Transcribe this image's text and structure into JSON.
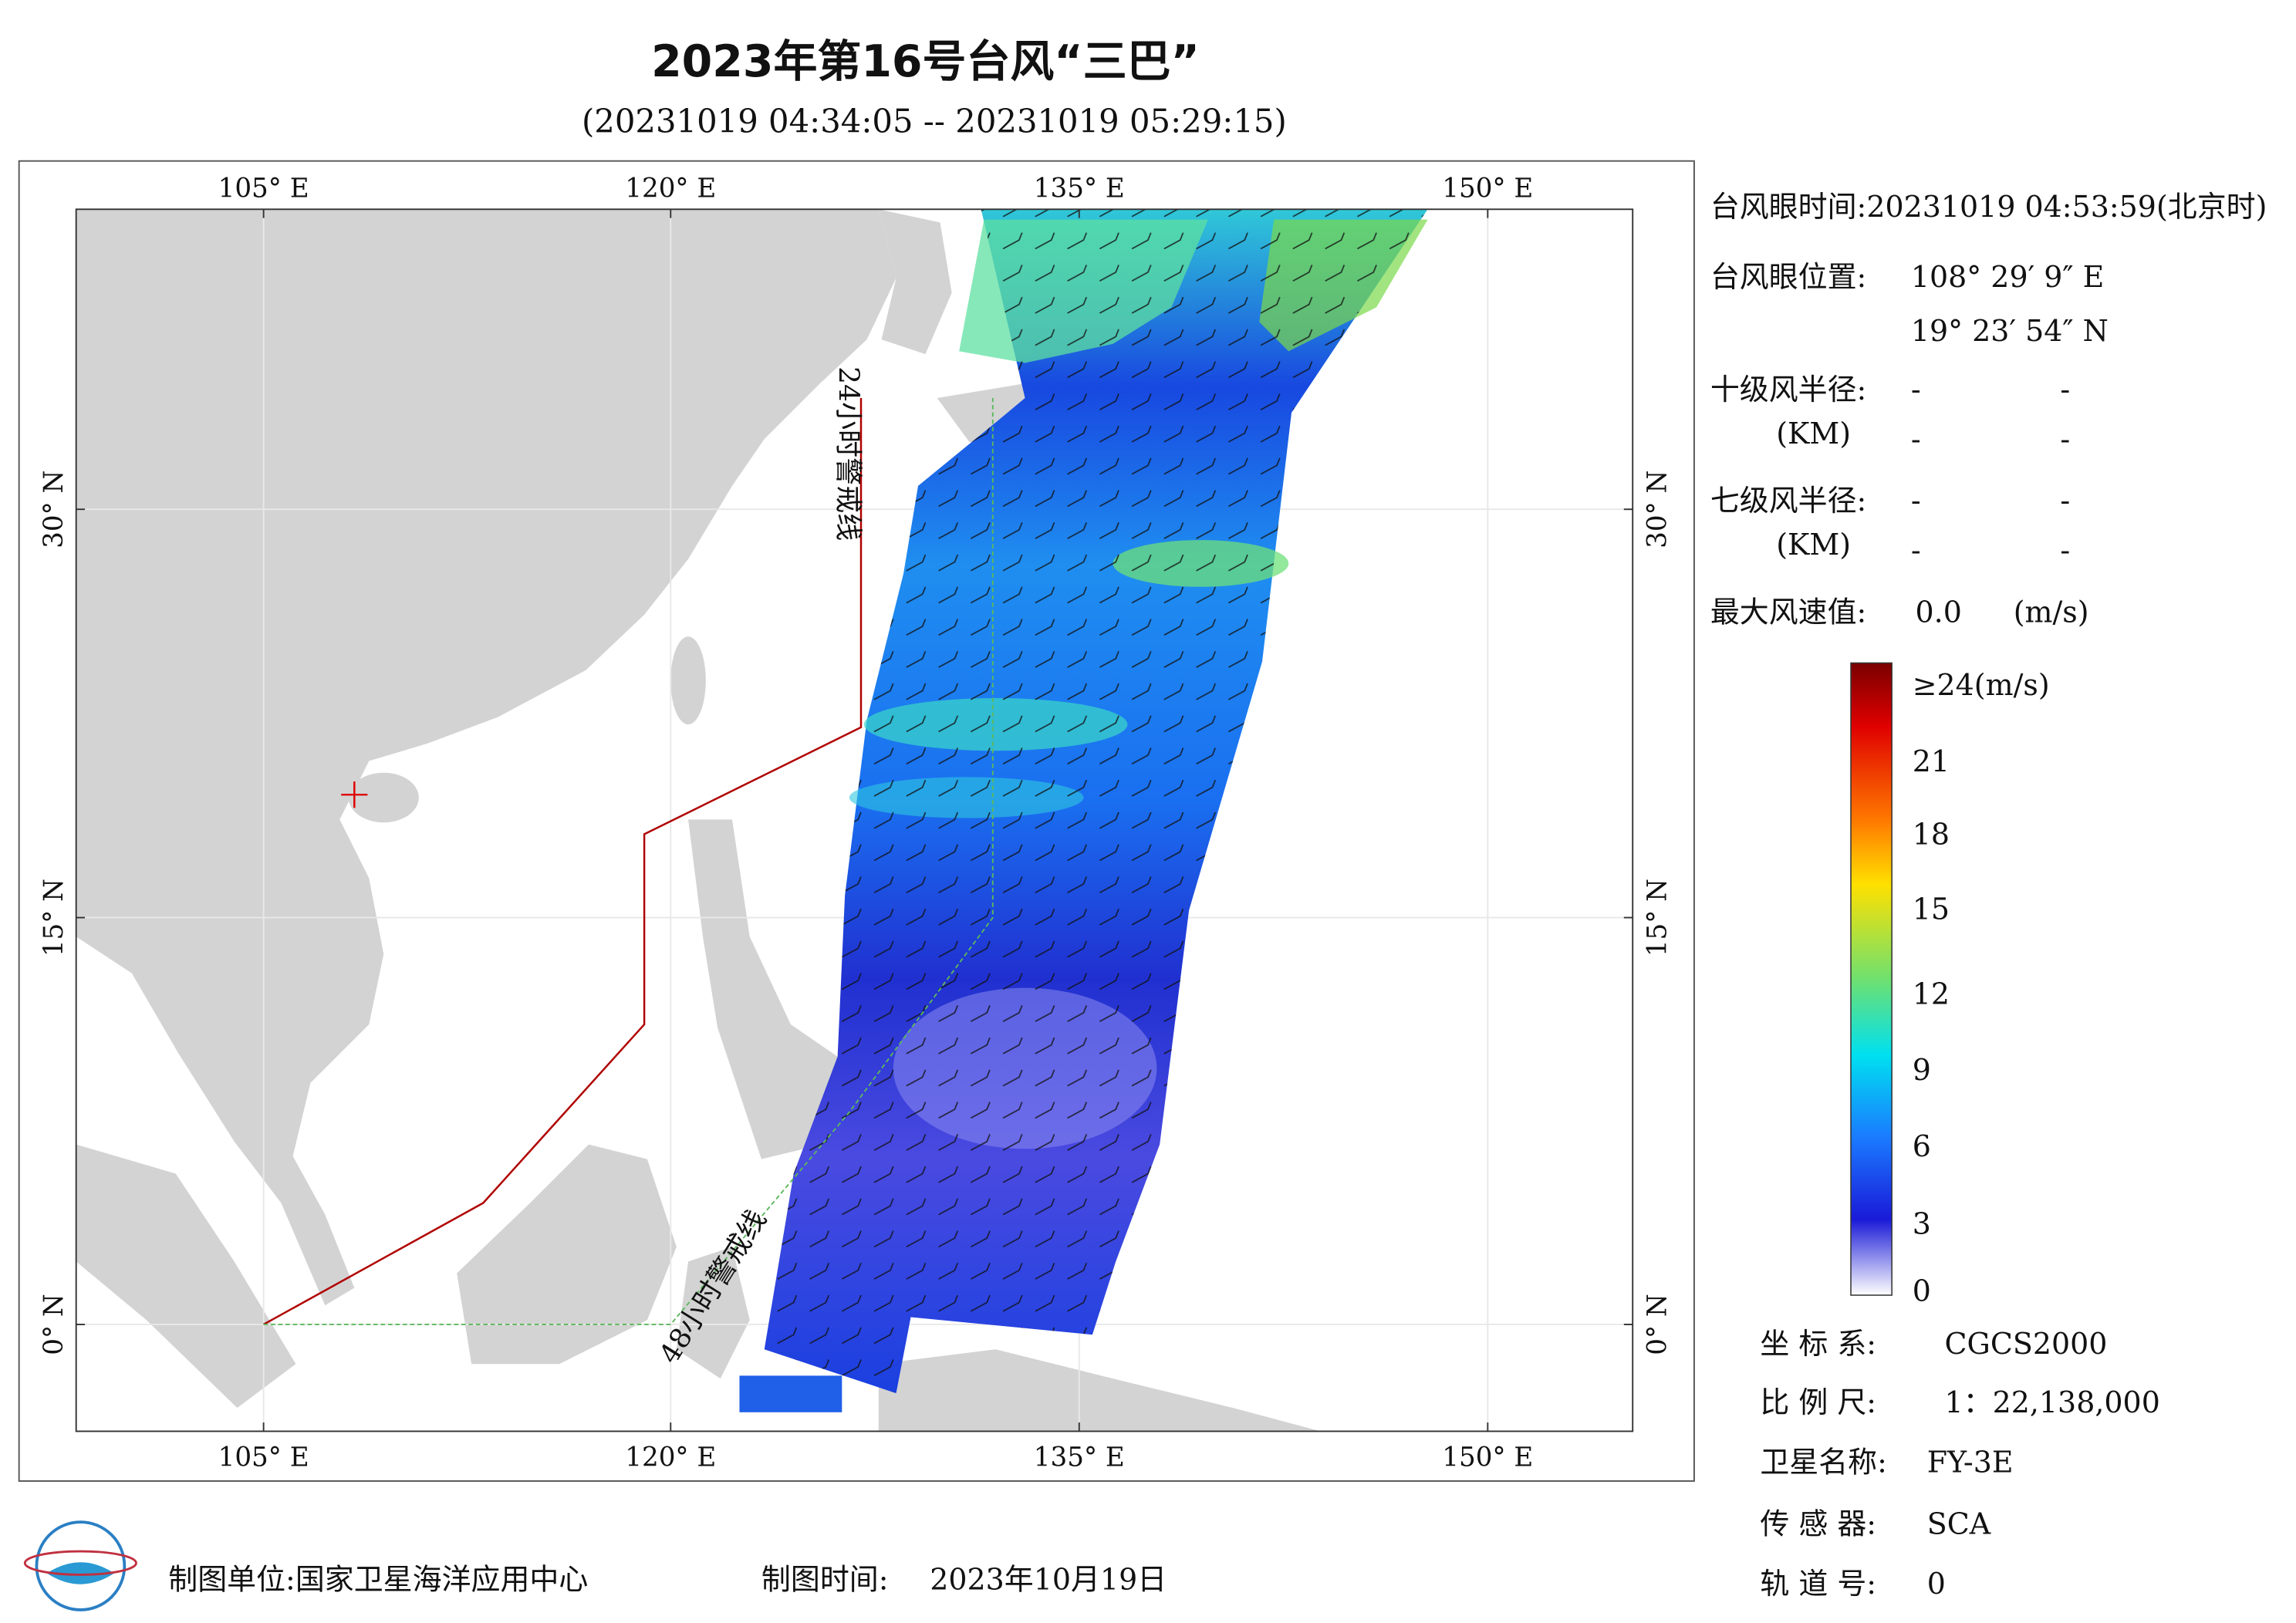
{
  "header": {
    "title": "2023年第16号台风“三巴”",
    "subtitle": "(20231019 04:34:05 -- 20231019 05:29:15)"
  },
  "map": {
    "lon_labels": [
      "105° E",
      "120° E",
      "135° E",
      "150° E"
    ],
    "lat_labels": [
      "0° N",
      "15° N",
      "30° N"
    ],
    "warning_lines": [
      "24小时警戒线",
      "48小时警戒线"
    ]
  },
  "info": {
    "eye_time": "台风眼时间:20231019 04:53:59(北京时)",
    "eye_position_label": "台风眼位置:",
    "eye_lon": "108° 29′ 9″ E",
    "eye_lat": "19° 23′ 54″ N",
    "r10_label": "十级风半径:",
    "r7_label": "七级风半径:",
    "km_unit": "(KM)",
    "dash": "-",
    "max_wind_label": "最大风速值:",
    "max_wind_value": "0.0",
    "max_wind_unit": "(m/s)"
  },
  "colorbar": {
    "labels": [
      "≥24(m/s)",
      "21",
      "18",
      "15",
      "12",
      "9",
      "6",
      "3",
      "0"
    ]
  },
  "meta": {
    "rows": [
      [
        "坐 标 系:",
        "CGCS2000"
      ],
      [
        "比 例 尺:",
        "1：22,138,000"
      ],
      [
        "卫星名称:",
        "FY-3E"
      ],
      [
        "传 感 器:",
        "SCA"
      ],
      [
        "轨 道 号:",
        "0"
      ]
    ]
  },
  "footer": {
    "unit": "制图单位:国家卫星海洋应用中心",
    "time_label": "制图时间:",
    "time_value": "2023年10月19日"
  }
}
